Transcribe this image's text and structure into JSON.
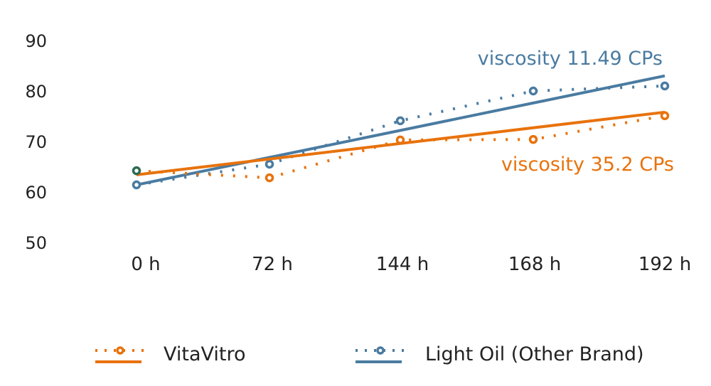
{
  "chart_data": {
    "type": "line",
    "categories": [
      "0 h",
      "72 h",
      "144 h",
      "168 h",
      "192 h"
    ],
    "yticks": [
      50,
      60,
      70,
      80,
      90
    ],
    "ylim": [
      50,
      90
    ],
    "grid": false,
    "legend_position": "bottom",
    "series": [
      {
        "name": "VitaVitro",
        "color": "#e8720c",
        "values": [
          64.2,
          62.8,
          70.3,
          70.4,
          75.1
        ],
        "trend": [
          63.4,
          75.8
        ],
        "annotation": "viscosity 35.2 CPs",
        "first_point_color": "#2f6b52"
      },
      {
        "name": "Light Oil (Other Brand)",
        "color": "#4a7ba1",
        "values": [
          61.4,
          65.5,
          74.1,
          80.0,
          81.0
        ],
        "trend": [
          61.4,
          83.0
        ],
        "annotation": "viscosity 11.49 CPs"
      }
    ]
  }
}
